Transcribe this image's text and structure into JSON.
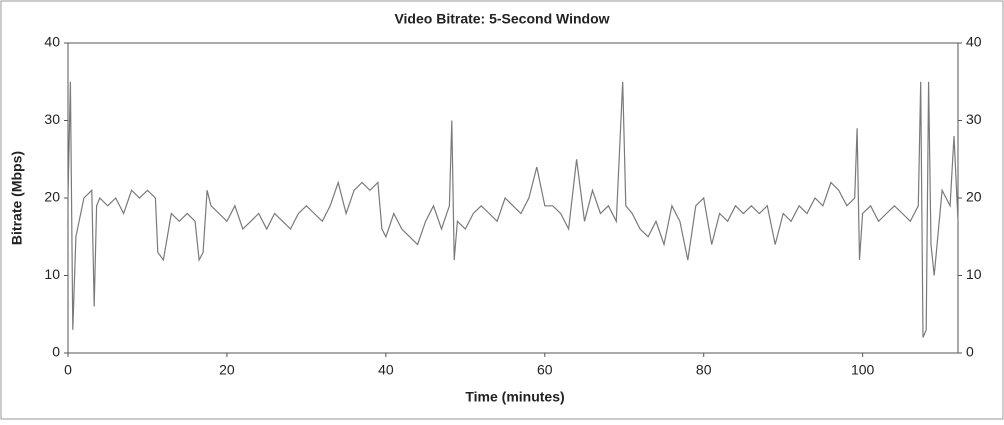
{
  "chart_data": {
    "type": "line",
    "title": "Video Bitrate: 5-Second Window",
    "x_label": "Time (minutes)",
    "y_label": "Bitrate (Mbps)",
    "xlim": [
      0,
      112
    ],
    "xticks": [
      0,
      20,
      40,
      60,
      80,
      100
    ],
    "ylim": [
      0,
      40
    ],
    "yticks": [
      0,
      10,
      20,
      30,
      40
    ],
    "y2lim": [
      0,
      40
    ],
    "y2ticks": [
      0,
      10,
      20,
      30,
      40
    ],
    "grid": false,
    "series": [
      {
        "color": "#7a7a7a",
        "x": [
          0,
          0.3,
          0.6,
          1,
          2,
          3,
          3.3,
          3.6,
          4,
          5,
          6,
          7,
          8,
          9,
          10,
          11,
          11.3,
          12,
          13,
          14,
          15,
          16,
          16.5,
          17,
          17.5,
          18,
          19,
          20,
          21,
          22,
          23,
          24,
          25,
          26,
          27,
          28,
          29,
          30,
          31,
          32,
          33,
          34,
          35,
          36,
          37,
          38,
          39,
          39.5,
          40,
          41,
          42,
          43,
          44,
          45,
          46,
          47,
          48,
          48.3,
          48.6,
          49,
          50,
          51,
          52,
          53,
          54,
          55,
          56,
          57,
          58,
          59,
          60,
          61,
          62,
          63,
          64,
          65,
          66,
          67,
          68,
          69,
          69.8,
          70.2,
          71,
          72,
          73,
          74,
          75,
          76,
          77,
          78,
          79,
          80,
          81,
          82,
          83,
          84,
          85,
          86,
          87,
          88,
          89,
          90,
          91,
          92,
          93,
          94,
          95,
          96,
          97,
          98,
          99,
          99.3,
          99.6,
          100,
          101,
          102,
          103,
          104,
          105,
          106,
          107,
          107.3,
          107.6,
          108,
          108.3,
          108.6,
          109,
          110,
          111,
          111.5,
          112
        ],
        "values": [
          20,
          35,
          3,
          15,
          20,
          21,
          6,
          19,
          20,
          19,
          20,
          18,
          21,
          20,
          21,
          20,
          13,
          12,
          18,
          17,
          18,
          17,
          12,
          13,
          21,
          19,
          18,
          17,
          19,
          16,
          17,
          18,
          16,
          18,
          17,
          16,
          18,
          19,
          18,
          17,
          19,
          22,
          18,
          21,
          22,
          21,
          22,
          16,
          15,
          18,
          16,
          15,
          14,
          17,
          19,
          16,
          19,
          30,
          12,
          17,
          16,
          18,
          19,
          18,
          17,
          20,
          19,
          18,
          20,
          24,
          19,
          19,
          18,
          16,
          25,
          17,
          21,
          18,
          19,
          17,
          35,
          19,
          18,
          16,
          15,
          17,
          14,
          19,
          17,
          12,
          19,
          20,
          14,
          18,
          17,
          19,
          18,
          19,
          18,
          19,
          14,
          18,
          17,
          19,
          18,
          20,
          19,
          22,
          21,
          19,
          20,
          29,
          12,
          18,
          19,
          17,
          18,
          19,
          18,
          17,
          19,
          35,
          2,
          3,
          35,
          14,
          10,
          21,
          19,
          28,
          17
        ]
      }
    ]
  }
}
